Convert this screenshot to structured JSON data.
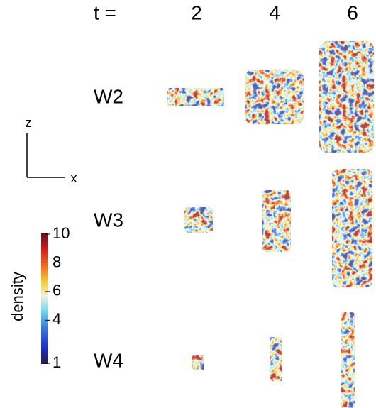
{
  "header": {
    "label": "t =",
    "times": [
      "2",
      "4",
      "6"
    ]
  },
  "rows": [
    "W2",
    "W3",
    "W4"
  ],
  "axes": {
    "vertical": "z",
    "horizontal": "x"
  },
  "colorbar": {
    "label": "density",
    "lim": [
      1,
      10
    ],
    "ticks": [
      1,
      4,
      6,
      8,
      10
    ]
  }
}
